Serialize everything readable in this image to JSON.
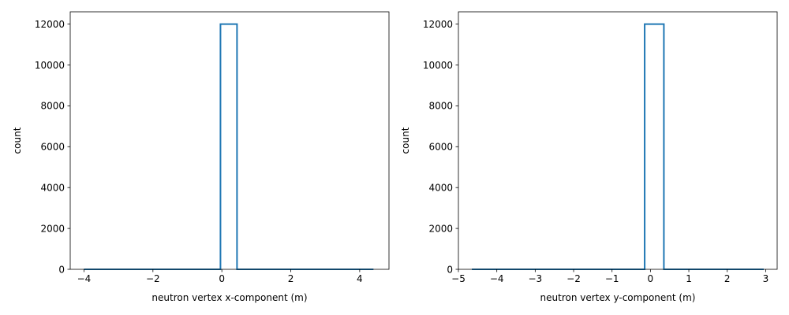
{
  "chart_data": [
    {
      "type": "bar",
      "histogram": true,
      "xlabel": "neutron vertex x-component (m)",
      "ylabel": "count",
      "xlim": [
        -4.4,
        4.85
      ],
      "ylim": [
        0,
        12600
      ],
      "xticks": [
        -4,
        -2,
        0,
        2,
        4
      ],
      "xtick_labels": [
        "−4",
        "−2",
        "0",
        "2",
        "4"
      ],
      "yticks": [
        0,
        2000,
        4000,
        6000,
        8000,
        10000,
        12000
      ],
      "ytick_labels": [
        "0",
        "2000",
        "4000",
        "6000",
        "8000",
        "10000",
        "12000"
      ],
      "bins": {
        "edges": [
          -4.0,
          -3.56,
          -3.12,
          -2.68,
          -2.24,
          -1.8,
          -1.36,
          -0.92,
          -0.48,
          -0.04,
          0.44,
          0.88,
          1.32,
          1.76,
          2.2,
          2.64,
          3.08,
          3.52,
          3.96,
          4.4
        ],
        "counts": [
          0,
          0,
          0,
          0,
          0,
          0,
          0,
          0,
          0,
          12000,
          0,
          0,
          0,
          0,
          0,
          0,
          0,
          0,
          0
        ]
      },
      "color": "#1f77b4",
      "grid": false
    },
    {
      "type": "bar",
      "histogram": true,
      "xlabel": "neutron vertex y-component (m)",
      "ylabel": "count",
      "xlim": [
        -5.0,
        3.3
      ],
      "ylim": [
        0,
        12600
      ],
      "xticks": [
        -5,
        -4,
        -3,
        -2,
        -1,
        0,
        1,
        2,
        3
      ],
      "xtick_labels": [
        "−5",
        "−4",
        "−3",
        "−2",
        "−1",
        "0",
        "1",
        "2",
        "3"
      ],
      "yticks": [
        0,
        2000,
        4000,
        6000,
        8000,
        10000,
        12000
      ],
      "ytick_labels": [
        "0",
        "2000",
        "4000",
        "6000",
        "8000",
        "10000",
        "12000"
      ],
      "bins": {
        "edges": [
          -4.65,
          -4.15,
          -3.65,
          -3.15,
          -2.65,
          -2.15,
          -1.65,
          -1.15,
          -0.65,
          -0.15,
          0.35,
          0.85,
          1.35,
          1.85,
          2.35,
          2.95
        ],
        "counts": [
          0,
          0,
          0,
          0,
          0,
          0,
          0,
          0,
          0,
          12000,
          0,
          0,
          0,
          0,
          0
        ]
      },
      "color": "#1f77b4",
      "grid": false
    }
  ]
}
